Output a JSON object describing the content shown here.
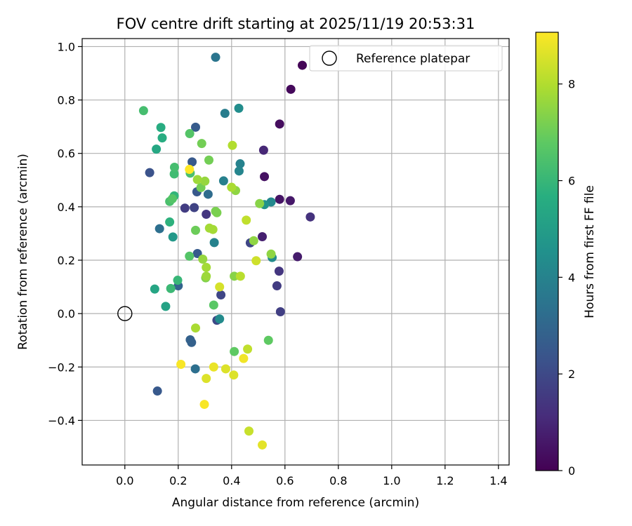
{
  "chart_data": {
    "type": "scatter",
    "title": "FOV centre drift starting at 2025/11/19 20:53:31",
    "xlabel": "Angular distance from reference (arcmin)",
    "ylabel": "Rotation from reference (arcmin)",
    "xlim": [
      -0.16,
      1.44
    ],
    "ylim": [
      -0.567,
      1.03
    ],
    "xticks": [
      0.0,
      0.2,
      0.4,
      0.6,
      0.8,
      1.0,
      1.2,
      1.4
    ],
    "xtick_labels": [
      "0.0",
      "0.2",
      "0.4",
      "0.6",
      "0.8",
      "1.0",
      "1.2",
      "1.4"
    ],
    "yticks": [
      -0.4,
      -0.2,
      0.0,
      0.2,
      0.4,
      0.6,
      0.8,
      1.0
    ],
    "ytick_labels": [
      "−0.4",
      "−0.2",
      "0.0",
      "0.2",
      "0.4",
      "0.6",
      "0.8",
      "1.0"
    ],
    "grid": true,
    "legend": {
      "location": "upper right",
      "entries": [
        {
          "label": "Reference platepar",
          "marker": "open-circle",
          "x": 0.0,
          "y": 0.0
        }
      ]
    },
    "colorbar": {
      "label": "Hours from first FF file",
      "min": 0,
      "max": 9.07,
      "ticks": [
        0,
        2,
        4,
        6,
        8
      ],
      "tick_labels": [
        "0",
        "2",
        "4",
        "6",
        "8"
      ],
      "colormap": "viridis"
    },
    "points": [
      {
        "x": 0.665,
        "y": 0.93,
        "c": 0.1
      },
      {
        "x": 0.622,
        "y": 0.84,
        "c": 0.2
      },
      {
        "x": 0.58,
        "y": 0.71,
        "c": 0.3
      },
      {
        "x": 0.523,
        "y": 0.513,
        "c": 0.4
      },
      {
        "x": 0.58,
        "y": 0.428,
        "c": 0.5
      },
      {
        "x": 0.62,
        "y": 0.423,
        "c": 0.6
      },
      {
        "x": 0.647,
        "y": 0.213,
        "c": 0.7
      },
      {
        "x": 0.515,
        "y": 0.288,
        "c": 0.8
      },
      {
        "x": 0.52,
        "y": 0.612,
        "c": 1.0
      },
      {
        "x": 0.695,
        "y": 0.362,
        "c": 1.3
      },
      {
        "x": 0.578,
        "y": 0.159,
        "c": 1.4
      },
      {
        "x": 0.57,
        "y": 0.104,
        "c": 1.6
      },
      {
        "x": 0.583,
        "y": 0.007,
        "c": 1.7
      },
      {
        "x": 0.47,
        "y": 0.265,
        "c": 1.9
      },
      {
        "x": 0.305,
        "y": 0.372,
        "c": 1.4
      },
      {
        "x": 0.225,
        "y": 0.395,
        "c": 1.6
      },
      {
        "x": 0.26,
        "y": 0.397,
        "c": 1.8
      },
      {
        "x": 0.36,
        "y": 0.07,
        "c": 1.9
      },
      {
        "x": 0.345,
        "y": -0.025,
        "c": 2.0
      },
      {
        "x": 0.122,
        "y": -0.29,
        "c": 2.5
      },
      {
        "x": 0.093,
        "y": 0.528,
        "c": 2.3
      },
      {
        "x": 0.265,
        "y": 0.698,
        "c": 2.6
      },
      {
        "x": 0.252,
        "y": 0.568,
        "c": 2.5
      },
      {
        "x": 0.27,
        "y": 0.456,
        "c": 2.5
      },
      {
        "x": 0.272,
        "y": 0.225,
        "c": 2.6
      },
      {
        "x": 0.245,
        "y": -0.098,
        "c": 2.8
      },
      {
        "x": 0.25,
        "y": -0.108,
        "c": 2.8
      },
      {
        "x": 0.2,
        "y": 0.104,
        "c": 2.9
      },
      {
        "x": 0.13,
        "y": 0.318,
        "c": 3.3
      },
      {
        "x": 0.312,
        "y": 0.447,
        "c": 3.2
      },
      {
        "x": 0.264,
        "y": -0.207,
        "c": 3.3
      },
      {
        "x": 0.34,
        "y": 0.96,
        "c": 3.5
      },
      {
        "x": 0.375,
        "y": 0.75,
        "c": 3.8
      },
      {
        "x": 0.37,
        "y": 0.497,
        "c": 3.9
      },
      {
        "x": 0.335,
        "y": 0.266,
        "c": 4.0
      },
      {
        "x": 0.432,
        "y": 0.561,
        "c": 4.0
      },
      {
        "x": 0.428,
        "y": 0.534,
        "c": 4.1
      },
      {
        "x": 0.548,
        "y": 0.418,
        "c": 4.2
      },
      {
        "x": 0.552,
        "y": 0.21,
        "c": 4.3
      },
      {
        "x": 0.355,
        "y": -0.02,
        "c": 4.3
      },
      {
        "x": 0.427,
        "y": 0.769,
        "c": 4.4
      },
      {
        "x": 0.523,
        "y": 0.408,
        "c": 4.6
      },
      {
        "x": 0.18,
        "y": 0.287,
        "c": 4.8
      },
      {
        "x": 0.153,
        "y": 0.027,
        "c": 5.2
      },
      {
        "x": 0.112,
        "y": 0.092,
        "c": 5.3
      },
      {
        "x": 0.118,
        "y": 0.616,
        "c": 5.4
      },
      {
        "x": 0.135,
        "y": 0.697,
        "c": 5.6
      },
      {
        "x": 0.14,
        "y": 0.658,
        "c": 5.6
      },
      {
        "x": 0.168,
        "y": 0.343,
        "c": 5.8
      },
      {
        "x": 0.185,
        "y": 0.441,
        "c": 5.9
      },
      {
        "x": 0.198,
        "y": 0.125,
        "c": 6.0
      },
      {
        "x": 0.172,
        "y": 0.094,
        "c": 6.1
      },
      {
        "x": 0.07,
        "y": 0.76,
        "c": 6.3
      },
      {
        "x": 0.185,
        "y": 0.523,
        "c": 6.2
      },
      {
        "x": 0.186,
        "y": 0.548,
        "c": 6.3
      },
      {
        "x": 0.168,
        "y": 0.42,
        "c": 6.4
      },
      {
        "x": 0.245,
        "y": 0.526,
        "c": 6.4
      },
      {
        "x": 0.242,
        "y": 0.215,
        "c": 6.6
      },
      {
        "x": 0.243,
        "y": 0.674,
        "c": 6.6
      },
      {
        "x": 0.178,
        "y": 0.43,
        "c": 6.6
      },
      {
        "x": 0.333,
        "y": 0.032,
        "c": 6.7
      },
      {
        "x": 0.41,
        "y": -0.142,
        "c": 6.8
      },
      {
        "x": 0.538,
        "y": -0.1,
        "c": 6.8
      },
      {
        "x": 0.265,
        "y": 0.312,
        "c": 7.0
      },
      {
        "x": 0.285,
        "y": 0.472,
        "c": 7.1
      },
      {
        "x": 0.288,
        "y": 0.637,
        "c": 7.1
      },
      {
        "x": 0.315,
        "y": 0.575,
        "c": 7.1
      },
      {
        "x": 0.345,
        "y": 0.378,
        "c": 7.2
      },
      {
        "x": 0.34,
        "y": 0.383,
        "c": 7.2
      },
      {
        "x": 0.303,
        "y": 0.134,
        "c": 7.3
      },
      {
        "x": 0.41,
        "y": 0.14,
        "c": 7.4
      },
      {
        "x": 0.415,
        "y": 0.461,
        "c": 7.5
      },
      {
        "x": 0.505,
        "y": 0.412,
        "c": 7.4
      },
      {
        "x": 0.483,
        "y": 0.273,
        "c": 7.5
      },
      {
        "x": 0.548,
        "y": 0.223,
        "c": 7.5
      },
      {
        "x": 0.292,
        "y": 0.204,
        "c": 7.6
      },
      {
        "x": 0.3,
        "y": 0.496,
        "c": 7.6
      },
      {
        "x": 0.272,
        "y": 0.502,
        "c": 7.7
      },
      {
        "x": 0.305,
        "y": 0.14,
        "c": 7.7
      },
      {
        "x": 0.33,
        "y": 0.315,
        "c": 7.8
      },
      {
        "x": 0.317,
        "y": 0.32,
        "c": 7.8
      },
      {
        "x": 0.305,
        "y": 0.173,
        "c": 7.8
      },
      {
        "x": 0.265,
        "y": -0.054,
        "c": 7.9
      },
      {
        "x": 0.4,
        "y": 0.473,
        "c": 7.9
      },
      {
        "x": 0.403,
        "y": 0.63,
        "c": 8.0
      },
      {
        "x": 0.433,
        "y": 0.14,
        "c": 8.1
      },
      {
        "x": 0.455,
        "y": 0.35,
        "c": 8.2
      },
      {
        "x": 0.46,
        "y": -0.133,
        "c": 8.2
      },
      {
        "x": 0.465,
        "y": -0.44,
        "c": 8.3
      },
      {
        "x": 0.492,
        "y": 0.198,
        "c": 8.4
      },
      {
        "x": 0.355,
        "y": 0.1,
        "c": 8.5
      },
      {
        "x": 0.305,
        "y": -0.243,
        "c": 8.6
      },
      {
        "x": 0.378,
        "y": -0.207,
        "c": 8.6
      },
      {
        "x": 0.408,
        "y": -0.23,
        "c": 8.6
      },
      {
        "x": 0.515,
        "y": -0.492,
        "c": 8.7
      },
      {
        "x": 0.333,
        "y": -0.2,
        "c": 8.8
      },
      {
        "x": 0.445,
        "y": -0.168,
        "c": 8.9
      },
      {
        "x": 0.21,
        "y": -0.19,
        "c": 9.0
      },
      {
        "x": 0.298,
        "y": -0.34,
        "c": 9.0
      },
      {
        "x": 0.242,
        "y": 0.54,
        "c": 9.1
      }
    ]
  }
}
